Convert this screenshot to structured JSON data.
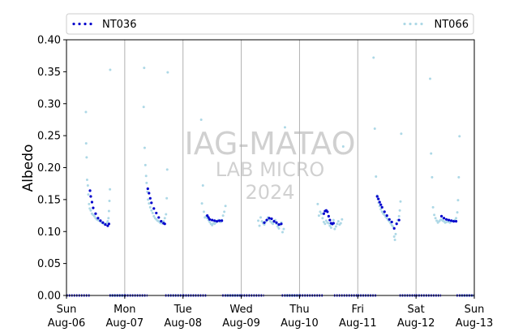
{
  "chart_data": {
    "type": "scatter",
    "title": "",
    "xlabel": "",
    "ylabel": "Albedo",
    "ylim": [
      0,
      0.4
    ],
    "xlim": [
      "2024-08-06",
      "2024-08-13"
    ],
    "y_ticks": [
      "0.00",
      "0.05",
      "0.10",
      "0.15",
      "0.20",
      "0.25",
      "0.30",
      "0.35",
      "0.40"
    ],
    "x_ticks": [
      {
        "day": "Sun",
        "date": "Aug-06"
      },
      {
        "day": "Mon",
        "date": "Aug-07"
      },
      {
        "day": "Tue",
        "date": "Aug-08"
      },
      {
        "day": "Wed",
        "date": "Aug-09"
      },
      {
        "day": "Thu",
        "date": "Aug-10"
      },
      {
        "day": "Fri",
        "date": "Aug-11"
      },
      {
        "day": "Sat",
        "date": "Aug-12"
      },
      {
        "day": "Sun",
        "date": "Aug-13"
      }
    ],
    "grid": "vertical day lines",
    "legend": "top, two columns",
    "watermark": [
      "IAG-MATAO",
      "LAB MICRO",
      "2024"
    ],
    "series": [
      {
        "name": "NT036",
        "color": "#0000cc",
        "days": [
          {
            "day": 0,
            "hours": [
              9.7,
              10.0,
              10.5,
              11.0,
              12.0,
              13.0,
              14.0,
              15.0,
              16.0,
              17.0,
              17.5
            ],
            "values": [
              0.164,
              0.155,
              0.146,
              0.137,
              0.128,
              0.121,
              0.117,
              0.114,
              0.111,
              0.109,
              0.112
            ]
          },
          {
            "day": 1,
            "hours": [
              9.5,
              10.0,
              10.5,
              11.0,
              12.0,
              13.0,
              14.0,
              15.0,
              16.0,
              16.5
            ],
            "values": [
              0.167,
              0.16,
              0.152,
              0.145,
              0.136,
              0.129,
              0.122,
              0.116,
              0.113,
              0.112
            ]
          },
          {
            "day": 2,
            "hours": [
              10.0,
              10.5,
              11.0,
              12.0,
              13.0,
              14.0,
              15.0,
              16.0
            ],
            "values": [
              0.125,
              0.122,
              0.119,
              0.118,
              0.117,
              0.116,
              0.117,
              0.117
            ]
          },
          {
            "day": 3,
            "hours": [
              9.5,
              10.5,
              11.5,
              12.5,
              13.5,
              14.5,
              15.5,
              16.5
            ],
            "values": [
              0.114,
              0.118,
              0.121,
              0.12,
              0.116,
              0.114,
              0.111,
              0.112
            ]
          },
          {
            "day": 4,
            "hours": [
              10.0,
              10.5,
              11.0,
              11.5,
              12.0,
              12.5,
              13.0,
              13.5,
              14.0
            ],
            "values": [
              0.128,
              0.132,
              0.133,
              0.131,
              0.124,
              0.118,
              0.113,
              0.112,
              0.113
            ]
          },
          {
            "day": 5,
            "hours": [
              8.0,
              8.5,
              9.0,
              9.5,
              10.0,
              11.0,
              12.0,
              13.0,
              14.0,
              15.0,
              16.0,
              17.0
            ],
            "values": [
              0.155,
              0.151,
              0.146,
              0.142,
              0.138,
              0.131,
              0.125,
              0.119,
              0.115,
              0.105,
              0.112,
              0.118
            ]
          },
          {
            "day": 6,
            "hours": [
              10.5,
              11.5,
              12.5,
              13.5,
              14.5,
              15.5,
              16.5
            ],
            "values": [
              0.124,
              0.121,
              0.119,
              0.118,
              0.117,
              0.116,
              0.116
            ]
          }
        ]
      },
      {
        "name": "NT066",
        "color": "#add8e6",
        "days": [
          {
            "day": 0,
            "hours": [
              8.0,
              8.1,
              8.3,
              8.5,
              8.8,
              9.0,
              9.3,
              9.6,
              10.0,
              10.5,
              11.0,
              11.5,
              12.0,
              12.5,
              13.0,
              13.5,
              14.0,
              14.5,
              15.0,
              15.5,
              16.0,
              16.5,
              17.0,
              17.3,
              17.5,
              17.7,
              17.9,
              18.0
            ],
            "values": [
              0.287,
              0.238,
              0.216,
              0.181,
              0.172,
              0.158,
              0.143,
              0.136,
              0.133,
              0.128,
              0.126,
              0.124,
              0.121,
              0.119,
              0.118,
              0.117,
              0.116,
              0.114,
              0.113,
              0.112,
              0.112,
              0.113,
              0.116,
              0.121,
              0.132,
              0.148,
              0.166,
              0.353
            ]
          },
          {
            "day": 1,
            "hours": [
              7.8,
              8.0,
              8.2,
              8.5,
              8.8,
              9.0,
              9.3,
              9.6,
              10.0,
              10.5,
              11.0,
              11.5,
              12.0,
              12.5,
              13.0,
              13.5,
              14.0,
              14.5,
              15.0,
              15.5,
              16.0,
              16.5,
              17.0,
              17.3,
              17.5,
              17.7
            ],
            "values": [
              0.295,
              0.356,
              0.231,
              0.204,
              0.187,
              0.176,
              0.162,
              0.15,
              0.144,
              0.138,
              0.133,
              0.129,
              0.124,
              0.121,
              0.119,
              0.117,
              0.116,
              0.114,
              0.113,
              0.113,
              0.116,
              0.121,
              0.127,
              0.152,
              0.197,
              0.349
            ]
          },
          {
            "day": 2,
            "hours": [
              7.5,
              7.8,
              8.2,
              8.6,
              9.0,
              9.5,
              10.0,
              10.5,
              11.0,
              11.5,
              12.0,
              12.5,
              13.0,
              13.5,
              14.0,
              14.5,
              15.0,
              15.5,
              16.0,
              16.5,
              17.0,
              17.5
            ],
            "values": [
              0.275,
              0.144,
              0.172,
              0.131,
              0.122,
              0.124,
              0.121,
              0.118,
              0.115,
              0.112,
              0.11,
              0.113,
              0.112,
              0.114,
              0.116,
              0.118,
              0.116,
              0.115,
              0.118,
              0.125,
              0.131,
              0.14
            ]
          },
          {
            "day": 3,
            "hours": [
              7.0,
              7.5,
              8.0,
              8.5,
              9.0,
              9.5,
              10.0,
              10.5,
              11.0,
              11.5,
              12.0,
              12.5,
              13.0,
              13.5,
              14.0,
              14.5,
              15.0,
              15.5,
              16.0,
              16.5,
              17.0,
              17.5,
              18.0
            ],
            "values": [
              0.117,
              0.109,
              0.122,
              0.116,
              0.113,
              0.111,
              0.115,
              0.118,
              0.122,
              0.119,
              0.116,
              0.114,
              0.112,
              0.115,
              0.118,
              0.112,
              0.108,
              0.105,
              0.11,
              0.114,
              0.099,
              0.104,
              0.263
            ]
          },
          {
            "day": 4,
            "hours": [
              7.5,
              8.0,
              8.5,
              9.0,
              9.5,
              10.0,
              10.5,
              11.0,
              11.5,
              12.0,
              12.5,
              13.0,
              13.5,
              14.0,
              14.5,
              15.0,
              15.5,
              16.0,
              16.5,
              17.0,
              17.5,
              18.0
            ],
            "values": [
              0.143,
              0.125,
              0.131,
              0.128,
              0.121,
              0.115,
              0.112,
              0.117,
              0.114,
              0.113,
              0.109,
              0.106,
              0.111,
              0.118,
              0.104,
              0.108,
              0.112,
              0.116,
              0.111,
              0.113,
              0.119,
              0.233
            ]
          },
          {
            "day": 5,
            "hours": [
              6.5,
              7.0,
              7.5,
              8.0,
              8.3,
              8.6,
              9.0,
              9.5,
              10.0,
              10.5,
              11.0,
              11.5,
              12.0,
              12.5,
              13.0,
              13.5,
              14.0,
              14.5,
              15.0,
              15.3,
              15.6,
              16.0,
              16.5,
              17.0,
              17.3,
              17.6,
              17.9
            ],
            "values": [
              0.372,
              0.261,
              0.186,
              0.156,
              0.151,
              0.145,
              0.14,
              0.135,
              0.131,
              0.128,
              0.126,
              0.123,
              0.121,
              0.118,
              0.116,
              0.113,
              0.11,
              0.108,
              0.092,
              0.087,
              0.096,
              0.113,
              0.118,
              0.124,
              0.133,
              0.147,
              0.253
            ]
          },
          {
            "day": 6,
            "hours": [
              5.8,
              6.2,
              6.6,
              7.0,
              7.5,
              8.0,
              8.5,
              9.0,
              9.5,
              10.0,
              10.5,
              11.0,
              11.5,
              12.0,
              12.5,
              13.0,
              13.5,
              14.0,
              14.5,
              15.0,
              15.5,
              16.0,
              16.5,
              17.0,
              17.3,
              17.6,
              17.9
            ],
            "values": [
              0.339,
              0.222,
              0.185,
              0.138,
              0.126,
              0.121,
              0.117,
              0.114,
              0.116,
              0.118,
              0.119,
              0.117,
              0.116,
              0.114,
              0.115,
              0.116,
              0.115,
              0.114,
              0.116,
              0.117,
              0.116,
              0.118,
              0.121,
              0.13,
              0.149,
              0.185,
              0.249
            ]
          }
        ]
      }
    ]
  }
}
